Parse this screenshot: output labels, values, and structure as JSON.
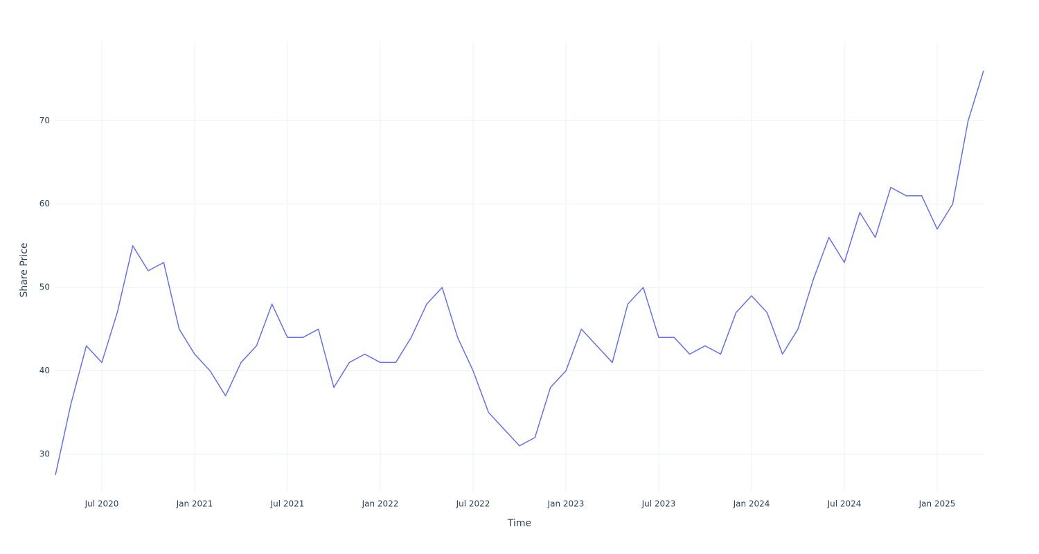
{
  "chart_data": {
    "type": "line",
    "x_label": "Time",
    "y_label": "Share Price",
    "x": [
      "2020-04",
      "2020-05",
      "2020-06",
      "2020-07",
      "2020-08",
      "2020-09",
      "2020-10",
      "2020-11",
      "2020-12",
      "2021-01",
      "2021-02",
      "2021-03",
      "2021-04",
      "2021-05",
      "2021-06",
      "2021-07",
      "2021-08",
      "2021-09",
      "2021-10",
      "2021-11",
      "2021-12",
      "2022-01",
      "2022-02",
      "2022-03",
      "2022-04",
      "2022-05",
      "2022-06",
      "2022-07",
      "2022-08",
      "2022-09",
      "2022-10",
      "2022-11",
      "2022-12",
      "2023-01",
      "2023-02",
      "2023-03",
      "2023-04",
      "2023-05",
      "2023-06",
      "2023-07",
      "2023-08",
      "2023-09",
      "2023-10",
      "2023-11",
      "2023-12",
      "2024-01",
      "2024-02",
      "2024-03",
      "2024-04",
      "2024-05",
      "2024-06",
      "2024-07",
      "2024-08",
      "2024-09",
      "2024-10",
      "2024-11",
      "2024-12",
      "2025-01",
      "2025-02",
      "2025-03",
      "2025-04"
    ],
    "values": [
      27.5,
      36,
      43,
      41,
      47,
      55,
      52,
      53,
      45,
      42,
      40,
      37,
      41,
      43,
      48,
      44,
      44,
      45,
      38,
      41,
      42,
      41,
      41,
      44,
      48,
      50,
      44,
      40,
      35,
      33,
      31,
      32,
      38,
      40,
      45,
      43,
      41,
      48,
      50,
      44,
      44,
      42,
      43,
      42,
      47,
      49,
      47,
      42,
      45,
      51,
      56,
      53,
      59,
      56,
      62,
      61,
      61,
      57,
      60,
      70,
      76
    ],
    "color": "#636efa",
    "xlim": [
      "2020-04",
      "2025-04"
    ],
    "xticks": [
      {
        "value": "2020-07",
        "label": "Jul 2020"
      },
      {
        "value": "2021-01",
        "label": "Jan 2021"
      },
      {
        "value": "2021-07",
        "label": "Jul 2021"
      },
      {
        "value": "2022-01",
        "label": "Jan 2022"
      },
      {
        "value": "2022-07",
        "label": "Jul 2022"
      },
      {
        "value": "2023-01",
        "label": "Jan 2023"
      },
      {
        "value": "2023-07",
        "label": "Jul 2023"
      },
      {
        "value": "2024-01",
        "label": "Jan 2024"
      },
      {
        "value": "2024-07",
        "label": "Jul 2024"
      },
      {
        "value": "2025-01",
        "label": "Jan 2025"
      }
    ],
    "ylim": [
      25.5,
      79.5
    ],
    "yticks": [
      30,
      40,
      50,
      60,
      70
    ],
    "grid": true
  }
}
